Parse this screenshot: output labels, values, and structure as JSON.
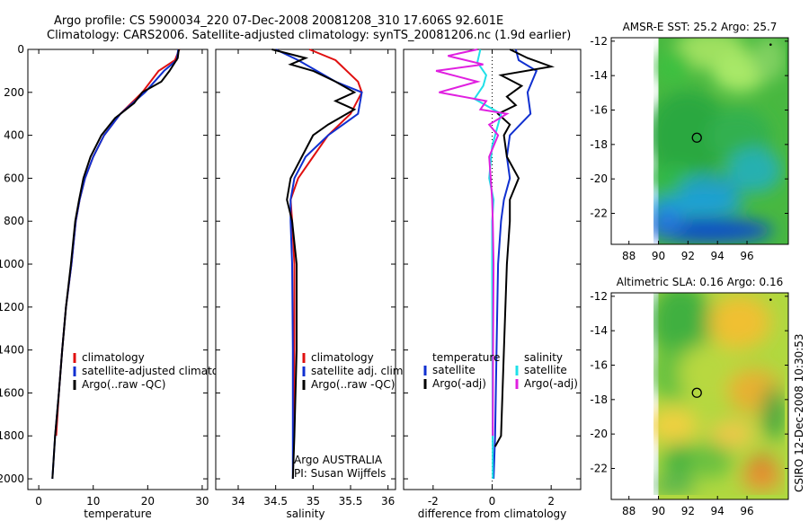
{
  "title": {
    "line1": "Argo profile: CS 5900034_220 07-Dec-2008 20081208_310 17.606S 92.601E",
    "line2": "Climatology: CARS2006. Satellite-adjusted climatology: synTS_20081206.nc (1.9d earlier)"
  },
  "footer_label": "CSIRO 12-Dec-2008 10:30:53",
  "colors": {
    "climatology": "#e01010",
    "satellite": "#1030d0",
    "argo": "#000000",
    "sal_satellite": "#20e0e8",
    "sal_argo": "#e020e0"
  },
  "chart_data": [
    {
      "type": "line",
      "name": "temperature-profile",
      "xlabel": "temperature",
      "ylabel": "",
      "xlim": [
        -2,
        31
      ],
      "ylim": [
        2050,
        0
      ],
      "xticks": [
        0,
        10,
        20,
        30
      ],
      "yticks": [
        0,
        200,
        400,
        600,
        800,
        1000,
        1200,
        1400,
        1600,
        1800,
        2000
      ],
      "legend": [
        "climatology",
        "satellite-adjusted climatology",
        "Argo(..raw -QC)"
      ],
      "series": [
        {
          "name": "climatology",
          "color_key": "climatology",
          "points": [
            [
              25.8,
              0
            ],
            [
              25.0,
              50
            ],
            [
              22.0,
              100
            ],
            [
              19.0,
              200
            ],
            [
              15.0,
              300
            ],
            [
              12.0,
              400
            ],
            [
              10.0,
              500
            ],
            [
              8.5,
              600
            ],
            [
              7.5,
              700
            ],
            [
              6.8,
              800
            ],
            [
              6.0,
              1000
            ],
            [
              5.0,
              1200
            ],
            [
              4.3,
              1400
            ],
            [
              3.7,
              1600
            ],
            [
              3.2,
              1800
            ]
          ]
        },
        {
          "name": "satellite-adjusted climatology",
          "color_key": "satellite",
          "points": [
            [
              25.6,
              0
            ],
            [
              25.3,
              50
            ],
            [
              23.0,
              100
            ],
            [
              19.5,
              200
            ],
            [
              15.0,
              300
            ],
            [
              12.0,
              400
            ],
            [
              10.0,
              500
            ],
            [
              8.5,
              600
            ],
            [
              7.5,
              700
            ],
            [
              6.8,
              800
            ],
            [
              6.0,
              1000
            ],
            [
              5.0,
              1200
            ],
            [
              4.3,
              1400
            ],
            [
              3.7,
              1600
            ],
            [
              3.0,
              1800
            ],
            [
              2.5,
              2000
            ]
          ]
        },
        {
          "name": "Argo(..raw -QC)",
          "color_key": "argo",
          "points": [
            [
              25.7,
              0
            ],
            [
              25.5,
              40
            ],
            [
              24.0,
              100
            ],
            [
              22.5,
              150
            ],
            [
              19.0,
              200
            ],
            [
              17.5,
              250
            ],
            [
              14.0,
              320
            ],
            [
              11.5,
              400
            ],
            [
              9.5,
              500
            ],
            [
              8.2,
              600
            ],
            [
              7.4,
              700
            ],
            [
              6.7,
              800
            ],
            [
              5.9,
              1000
            ],
            [
              5.0,
              1200
            ],
            [
              4.3,
              1400
            ],
            [
              3.7,
              1600
            ],
            [
              3.0,
              1800
            ],
            [
              2.5,
              2000
            ]
          ]
        }
      ]
    },
    {
      "type": "line",
      "name": "salinity-profile",
      "xlabel": "salinity",
      "ylabel": "",
      "xlim": [
        33.7,
        36.1
      ],
      "ylim": [
        2050,
        0
      ],
      "xticks": [
        34,
        34.5,
        35,
        35.5,
        36
      ],
      "legend": [
        "climatology",
        "satellite adj. clim.",
        "Argo(..raw -QC)"
      ],
      "annotations": [
        "Argo AUSTRALIA",
        "PI: Susan Wijffels"
      ],
      "series": [
        {
          "name": "climatology",
          "color_key": "climatology",
          "points": [
            [
              34.95,
              0
            ],
            [
              35.3,
              50
            ],
            [
              35.6,
              150
            ],
            [
              35.65,
              200
            ],
            [
              35.5,
              300
            ],
            [
              35.2,
              400
            ],
            [
              35.0,
              500
            ],
            [
              34.8,
              600
            ],
            [
              34.7,
              700
            ],
            [
              34.72,
              800
            ],
            [
              34.75,
              1000
            ],
            [
              34.75,
              1400
            ],
            [
              34.74,
              1800
            ]
          ]
        },
        {
          "name": "satellite adj. clim.",
          "color_key": "satellite",
          "points": [
            [
              34.5,
              0
            ],
            [
              34.8,
              50
            ],
            [
              35.3,
              150
            ],
            [
              35.65,
              200
            ],
            [
              35.6,
              300
            ],
            [
              35.2,
              400
            ],
            [
              34.9,
              500
            ],
            [
              34.75,
              600
            ],
            [
              34.7,
              700
            ],
            [
              34.7,
              800
            ],
            [
              34.72,
              1000
            ],
            [
              34.73,
              1400
            ],
            [
              34.73,
              1800
            ],
            [
              34.73,
              2000
            ]
          ]
        },
        {
          "name": "Argo(..raw -QC)",
          "color_key": "argo",
          "points": [
            [
              34.45,
              0
            ],
            [
              34.9,
              40
            ],
            [
              34.7,
              70
            ],
            [
              35.0,
              100
            ],
            [
              35.3,
              150
            ],
            [
              35.55,
              200
            ],
            [
              35.3,
              240
            ],
            [
              35.55,
              280
            ],
            [
              35.2,
              350
            ],
            [
              35.0,
              400
            ],
            [
              34.85,
              500
            ],
            [
              34.7,
              600
            ],
            [
              34.65,
              700
            ],
            [
              34.72,
              800
            ],
            [
              34.78,
              1000
            ],
            [
              34.78,
              1400
            ],
            [
              34.75,
              1800
            ],
            [
              34.73,
              2000
            ]
          ]
        }
      ]
    },
    {
      "type": "line",
      "name": "difference-profile",
      "xlabel": "difference from climatology",
      "ylabel": "",
      "xlim": [
        -3,
        3
      ],
      "ylim": [
        2050,
        0
      ],
      "xticks": [
        -2,
        0,
        2
      ],
      "legend_groups": [
        {
          "title": "temperature",
          "items": [
            "satellite",
            "Argo(-adj)"
          ]
        },
        {
          "title": "salinity",
          "items": [
            "satellite",
            "Argo(-adj)"
          ]
        }
      ],
      "series": [
        {
          "name": "temperature satellite",
          "color_key": "satellite",
          "points": [
            [
              0.8,
              0
            ],
            [
              0.9,
              50
            ],
            [
              1.5,
              100
            ],
            [
              1.2,
              200
            ],
            [
              1.3,
              300
            ],
            [
              0.6,
              400
            ],
            [
              0.5,
              500
            ],
            [
              0.6,
              600
            ],
            [
              0.4,
              700
            ],
            [
              0.3,
              800
            ],
            [
              0.2,
              1000
            ],
            [
              0.15,
              1400
            ],
            [
              0.1,
              1800
            ],
            [
              0.05,
              2000
            ]
          ]
        },
        {
          "name": "temperature Argo(-adj)",
          "color_key": "argo",
          "points": [
            [
              0.6,
              0
            ],
            [
              1.2,
              40
            ],
            [
              2.0,
              80
            ],
            [
              0.3,
              120
            ],
            [
              1.0,
              170
            ],
            [
              0.5,
              220
            ],
            [
              0.8,
              260
            ],
            [
              0.2,
              300
            ],
            [
              0.6,
              350
            ],
            [
              0.4,
              400
            ],
            [
              0.5,
              500
            ],
            [
              0.9,
              600
            ],
            [
              0.6,
              700
            ],
            [
              0.6,
              800
            ],
            [
              0.5,
              1000
            ],
            [
              0.4,
              1400
            ],
            [
              0.3,
              1800
            ],
            [
              0.1,
              1850
            ]
          ]
        },
        {
          "name": "salinity satellite",
          "color_key": "sal_satellite",
          "points": [
            [
              -0.4,
              0
            ],
            [
              -0.5,
              60
            ],
            [
              -0.2,
              120
            ],
            [
              -0.3,
              170
            ],
            [
              -0.6,
              230
            ],
            [
              0.3,
              300
            ],
            [
              0.2,
              350
            ],
            [
              0.0,
              450
            ],
            [
              -0.1,
              600
            ],
            [
              0.05,
              700
            ],
            [
              0.0,
              800
            ],
            [
              0.0,
              1000
            ],
            [
              0.02,
              2000
            ]
          ]
        },
        {
          "name": "salinity Argo(-adj)",
          "color_key": "sal_argo",
          "points": [
            [
              -0.5,
              0
            ],
            [
              -1.5,
              30
            ],
            [
              -0.3,
              70
            ],
            [
              -1.9,
              100
            ],
            [
              -0.5,
              150
            ],
            [
              -1.8,
              200
            ],
            [
              -0.2,
              240
            ],
            [
              -0.4,
              280
            ],
            [
              0.5,
              300
            ],
            [
              -0.1,
              350
            ],
            [
              0.2,
              400
            ],
            [
              -0.1,
              500
            ],
            [
              -0.05,
              600
            ],
            [
              0.0,
              700
            ],
            [
              0.02,
              800
            ],
            [
              0.05,
              1000
            ],
            [
              0.03,
              1400
            ],
            [
              0.02,
              1800
            ]
          ]
        }
      ]
    },
    {
      "type": "heatmap",
      "name": "sst-map",
      "title": "AMSR-E SST: 25.2 Argo: 25.7",
      "xlim": [
        86.8,
        98.8
      ],
      "ylim": [
        -23.8,
        -11.8
      ],
      "xticks": [
        88,
        90,
        92,
        94,
        96
      ],
      "yticks": [
        -12,
        -14,
        -16,
        -18,
        -20,
        -22
      ],
      "argo_marker": {
        "lon": 92.601,
        "lat": -17.606
      }
    },
    {
      "type": "heatmap",
      "name": "sla-map",
      "title": "Altimetric SLA: 0.16 Argo: 0.16",
      "xlim": [
        86.8,
        98.8
      ],
      "ylim": [
        -23.8,
        -11.8
      ],
      "xticks": [
        88,
        90,
        92,
        94,
        96
      ],
      "yticks": [
        -12,
        -14,
        -16,
        -18,
        -20,
        -22
      ],
      "argo_marker": {
        "lon": 92.601,
        "lat": -17.606
      }
    }
  ]
}
